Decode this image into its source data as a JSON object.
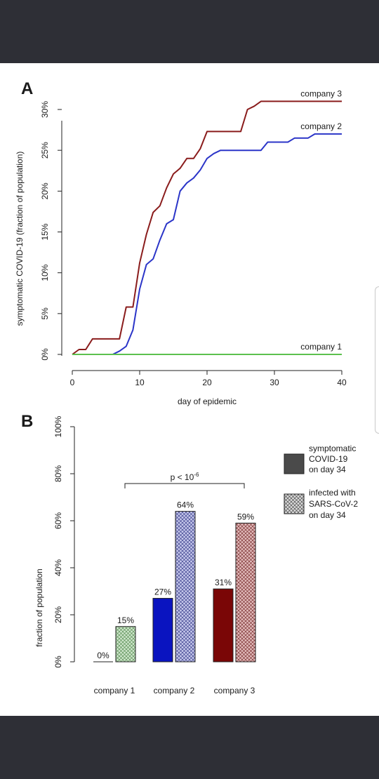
{
  "colors": {
    "company1": "#5cc04e",
    "company2": "#2b35c8",
    "company3": "#8a1c1c",
    "bar_company1_infected": "#cfe6cc",
    "bar_company2_symptomatic": "#0a14c0",
    "bar_company2_infected": "#c7c9ec",
    "bar_company3_symptomatic": "#7a0606",
    "bar_company3_infected": "#e3bcbc",
    "legend_solid": "#4a4a4a",
    "legend_hatch": "#d6d6d6"
  },
  "chart_data": [
    {
      "panel": "A",
      "type": "line",
      "xlabel": "day of epidemic",
      "ylabel": "symptomatic COVID-19 (fraction of population)",
      "xlim": [
        0,
        40
      ],
      "ylim": [
        0,
        30
      ],
      "xticks": [
        "0",
        "10",
        "20",
        "30",
        "40"
      ],
      "yticks": [
        "0%",
        "5%",
        "10%",
        "15%",
        "20%",
        "25%",
        "30%"
      ],
      "grid": false,
      "series": [
        {
          "name": "company 3",
          "points": [
            [
              0,
              0
            ],
            [
              1,
              0.6
            ],
            [
              2,
              0.6
            ],
            [
              3,
              1.9
            ],
            [
              7,
              1.9
            ],
            [
              8,
              5.8
            ],
            [
              9,
              5.8
            ],
            [
              10,
              11.2
            ],
            [
              11,
              14.7
            ],
            [
              12,
              17.4
            ],
            [
              13,
              18.2
            ],
            [
              14,
              20.4
            ],
            [
              15,
              22.1
            ],
            [
              16,
              22.8
            ],
            [
              17,
              24.0
            ],
            [
              18,
              24.0
            ],
            [
              19,
              25.2
            ],
            [
              20,
              27.3
            ],
            [
              25,
              27.3
            ],
            [
              26,
              30.0
            ],
            [
              27,
              30.4
            ],
            [
              28,
              31.0
            ],
            [
              40,
              31.0
            ]
          ]
        },
        {
          "name": "company 2",
          "points": [
            [
              0,
              0
            ],
            [
              6,
              0
            ],
            [
              7,
              0.4
            ],
            [
              8,
              1.0
            ],
            [
              9,
              3.0
            ],
            [
              10,
              8.0
            ],
            [
              11,
              11.0
            ],
            [
              12,
              11.7
            ],
            [
              13,
              14.0
            ],
            [
              14,
              16.0
            ],
            [
              15,
              16.5
            ],
            [
              16,
              20.0
            ],
            [
              17,
              21.0
            ],
            [
              18,
              21.6
            ],
            [
              19,
              22.6
            ],
            [
              20,
              24.0
            ],
            [
              21,
              24.6
            ],
            [
              22,
              25.0
            ],
            [
              28,
              25.0
            ],
            [
              29,
              26.0
            ],
            [
              32,
              26.0
            ],
            [
              33,
              26.5
            ],
            [
              35,
              26.5
            ],
            [
              36,
              27.0
            ],
            [
              40,
              27.0
            ]
          ]
        },
        {
          "name": "company 1",
          "points": [
            [
              0,
              0
            ],
            [
              40,
              0
            ]
          ]
        }
      ]
    },
    {
      "panel": "B",
      "type": "bar",
      "ylabel": "fraction of population",
      "ylim": [
        0,
        100
      ],
      "yticks": [
        "0%",
        "20%",
        "40%",
        "60%",
        "80%",
        "100%"
      ],
      "categories": [
        "company 1",
        "company 2",
        "company 3"
      ],
      "series": [
        {
          "name": "symptomatic COVID-19 on day 34",
          "values": [
            0,
            27,
            31
          ],
          "labels": [
            "0%",
            "27%",
            "31%"
          ]
        },
        {
          "name": "infected with SARS-CoV-2 on day 34",
          "values": [
            15,
            64,
            59
          ],
          "labels": [
            "15%",
            "64%",
            "59%"
          ]
        }
      ],
      "annotation": {
        "text": "p < 10",
        "superscript": "-6"
      },
      "legend_position": "right"
    }
  ],
  "panel_labels": {
    "a": "A",
    "b": "B"
  },
  "legend": {
    "symptomatic": [
      "symptomatic",
      "COVID-19",
      "on day 34"
    ],
    "infected": [
      "infected with",
      "SARS-CoV-2",
      "on day 34"
    ]
  }
}
